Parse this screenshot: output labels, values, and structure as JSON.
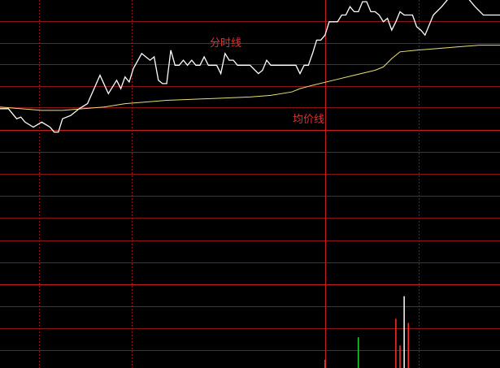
{
  "colors": {
    "background": "#000000",
    "grid": "#8a1616",
    "grid_mid": "#c02020",
    "price_line": "#ffffff",
    "avg_line": "#e8e07a",
    "label": "#e03030",
    "vol_up": "#ff3030",
    "vol_down": "#22cc33",
    "vol_flat": "#ffffff"
  },
  "labels": {
    "price_line": "分时线",
    "avg_line": "均价线"
  },
  "chart_data": {
    "type": "line",
    "x_minutes": 120,
    "ylim": [
      0,
      17
    ],
    "grid": true,
    "series": [
      {
        "key": "price",
        "x": [
          0,
          2,
          4,
          5,
          6,
          8,
          10,
          12,
          13,
          14,
          15,
          17,
          19,
          21,
          24,
          26,
          28,
          29,
          30,
          31,
          32,
          34,
          36,
          37,
          38,
          39,
          40,
          41,
          42,
          43,
          44,
          45,
          46,
          47,
          48,
          49,
          50,
          52,
          53,
          54,
          55,
          56,
          57,
          58,
          59,
          60,
          62,
          63,
          64,
          65,
          66,
          67,
          68,
          70,
          71,
          72,
          73,
          74,
          75,
          76,
          77,
          78,
          79,
          80,
          81,
          82,
          83,
          84,
          85,
          86,
          87,
          88,
          89,
          90,
          91,
          92,
          93,
          94,
          95,
          96,
          97,
          98,
          99,
          100,
          101,
          102,
          104,
          106,
          108,
          110,
          112,
          114,
          116,
          118,
          120
        ],
        "y": [
          10.5,
          10.5,
          9.9,
          10,
          9.7,
          9.4,
          9.7,
          9.4,
          9.1,
          9.1,
          9.9,
          10.1,
          10.5,
          10.8,
          12.5,
          11.4,
          12.2,
          11.7,
          12.4,
          12.1,
          12.9,
          13.8,
          13.4,
          13.6,
          12.2,
          12.0,
          12.0,
          14.0,
          13.1,
          13.1,
          13.4,
          13.1,
          13.4,
          13.1,
          13.1,
          13.6,
          13.1,
          13.1,
          12.6,
          13.8,
          13.4,
          13.4,
          13.1,
          13.1,
          13.1,
          13.1,
          12.6,
          12.8,
          13.4,
          13.1,
          13.1,
          13.1,
          13.1,
          13.1,
          13.1,
          12.6,
          13.1,
          13.1,
          13.8,
          14.6,
          14.6,
          14.9,
          15.7,
          15.7,
          15.7,
          16.1,
          16.1,
          16.6,
          16.3,
          16.3,
          16.9,
          16.9,
          16.3,
          16.3,
          16.1,
          15.7,
          15.9,
          15.2,
          15.7,
          16.3,
          16.1,
          16.1,
          16.1,
          15.4,
          15.2,
          14.9,
          16.1,
          16.6,
          17.2,
          17.5,
          17.2,
          16.6,
          16.1,
          16.1,
          16.1
        ],
        "name": ""
      },
      {
        "key": "avg",
        "x": [
          0,
          10,
          15,
          20,
          25,
          30,
          40,
          50,
          60,
          65,
          70,
          72,
          75,
          80,
          85,
          90,
          92,
          94,
          96,
          100,
          105,
          110,
          115,
          120
        ],
        "y": [
          10.6,
          10.4,
          10.4,
          10.5,
          10.6,
          10.8,
          11.0,
          11.1,
          11.2,
          11.3,
          11.5,
          11.7,
          11.9,
          12.2,
          12.5,
          12.8,
          13.0,
          13.5,
          13.9,
          14.0,
          14.1,
          14.2,
          14.3,
          14.3
        ],
        "name": ""
      }
    ],
    "volume": {
      "x": [
        78,
        86,
        95,
        96,
        97,
        98
      ],
      "v": [
        0.4,
        1.5,
        2.4,
        1.1,
        3.5,
        2.2
      ],
      "dir": [
        "up",
        "down",
        "up",
        "up",
        "flat",
        "up"
      ]
    }
  }
}
